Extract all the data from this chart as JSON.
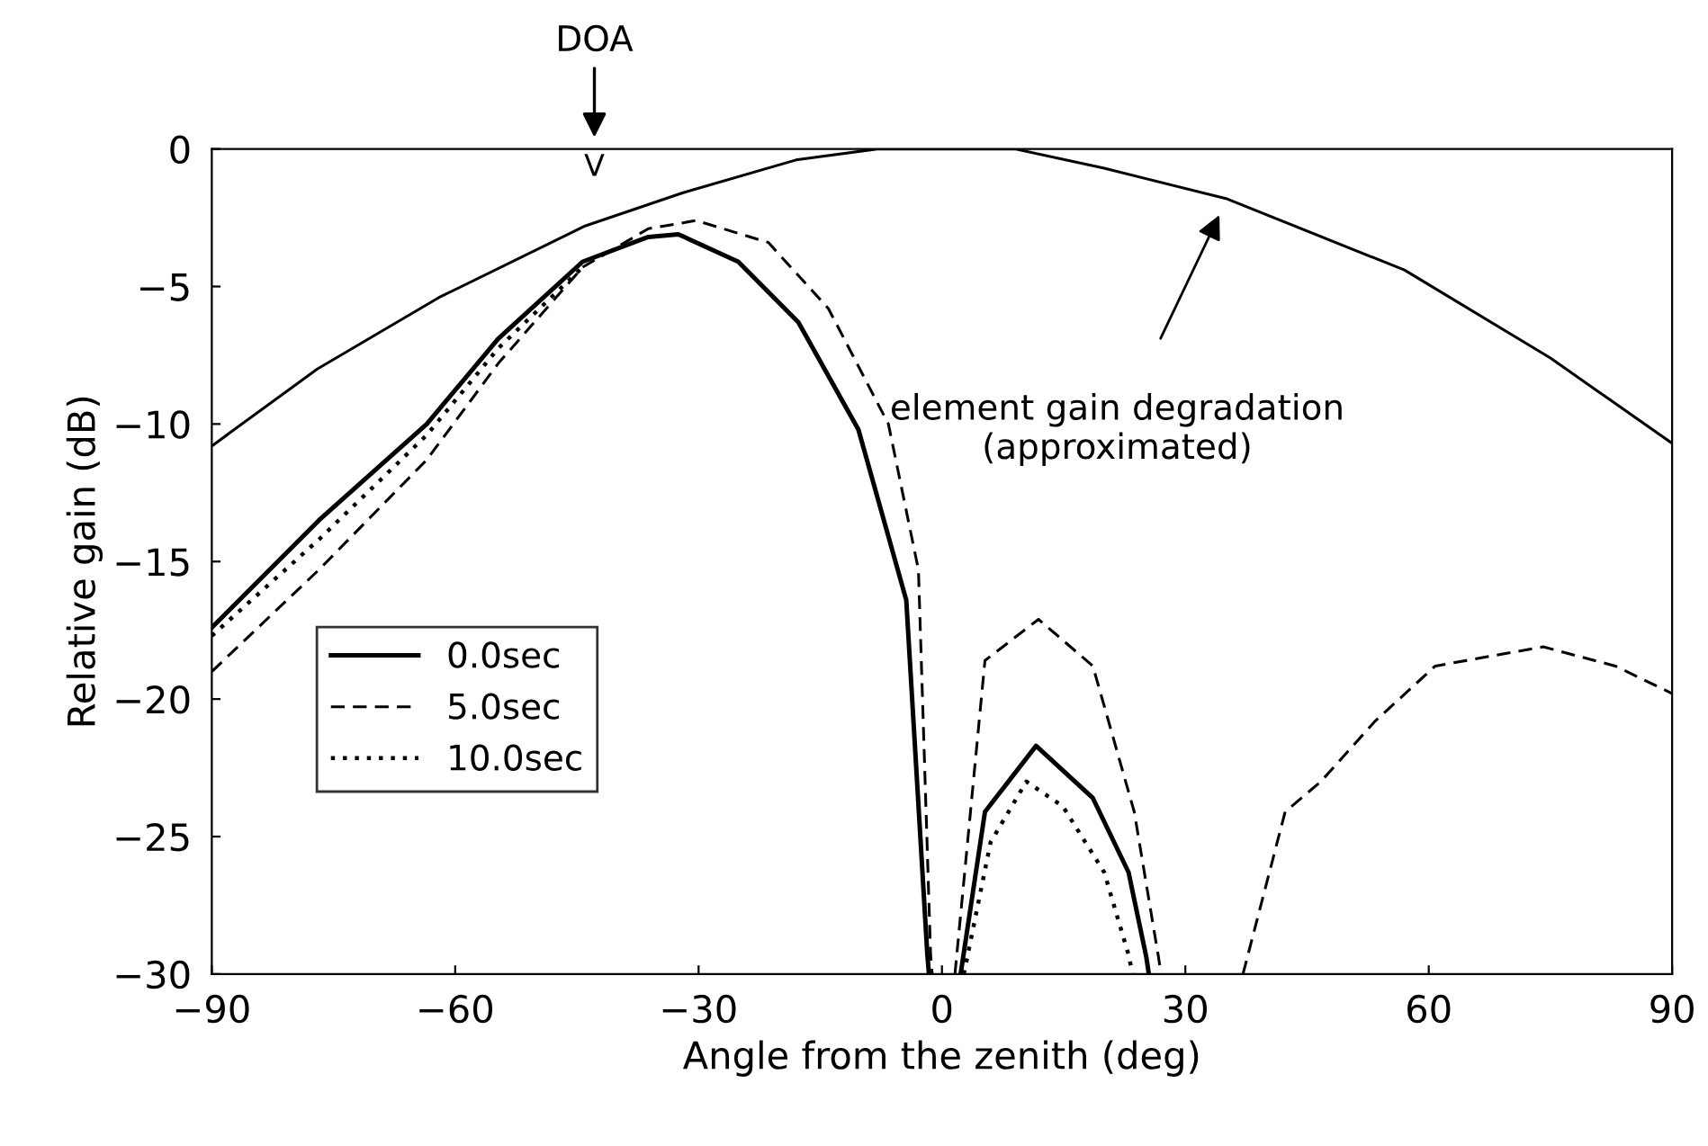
{
  "chart_data": {
    "type": "line",
    "xlabel": "Angle from the zenith (deg)",
    "ylabel": "Relative gain (dB)",
    "xlim": [
      -90,
      90
    ],
    "ylim": [
      -30,
      0
    ],
    "xticks": [
      -90,
      -60,
      -30,
      0,
      30,
      60,
      90
    ],
    "yticks": [
      0,
      -5,
      -10,
      -15,
      -20,
      -25,
      -30
    ],
    "grid": false,
    "legend": "bottom left",
    "marker": "none",
    "series": [
      {
        "name": "0.0sec",
        "color": "#000000",
        "line_style": "solid",
        "x": [
          -90,
          -76.8,
          -63.5,
          -54.7,
          -44.3,
          -36.2,
          -32.5,
          -25.1,
          -17.7,
          -10.3,
          -4.4,
          -1.8,
          -1.6,
          0,
          2.3,
          5.3,
          11.6,
          18.6,
          23,
          25.2,
          25.5
        ],
        "values": [
          -17.4,
          -13.5,
          -10,
          -6.9,
          -4.1,
          -3.2,
          -3.1,
          -4.1,
          -6.3,
          -10.2,
          -16.4,
          -29.3,
          -30,
          null,
          -30,
          -24.1,
          -21.7,
          -23.6,
          -26.3,
          -29.4,
          -30
        ]
      },
      {
        "name": "5.0sec",
        "color": "#000000",
        "line_style": "dashed",
        "x": [
          -90,
          -76.8,
          -63.5,
          -54.7,
          -44.3,
          -36.2,
          -30.3,
          -21.4,
          -14,
          -6.6,
          -2.9,
          -1.4,
          -1.2,
          0,
          1.6,
          5.3,
          11.9,
          18.6,
          23.7,
          26.7,
          27,
          32,
          37.1,
          42.3,
          46.7,
          53.4,
          60.8,
          74.1,
          83,
          90
        ],
        "values": [
          -19,
          -15.3,
          -11.3,
          -7.8,
          -4.3,
          -2.9,
          -2.6,
          -3.4,
          -5.8,
          -10,
          -15.3,
          -29.3,
          -30,
          null,
          -30,
          -18.6,
          -17.1,
          -18.8,
          -24.1,
          -29.4,
          -30,
          null,
          -30,
          -24.1,
          -23,
          -20.8,
          -18.8,
          -18.1,
          -18.8,
          -19.8
        ]
      },
      {
        "name": "10.0sec",
        "color": "#000000",
        "line_style": "dotted",
        "x": [
          -90,
          -76.8,
          -63.5,
          -54.7,
          -44.3,
          0,
          2.7,
          6,
          10.4,
          14.9,
          20,
          23,
          23.5
        ],
        "values": [
          -17.7,
          -14.2,
          -10.4,
          -7.25,
          -4.3,
          null,
          -30,
          -25.2,
          -23,
          -23.9,
          -26.3,
          -29.3,
          -30
        ]
      },
      {
        "color": "#000000",
        "line_style": "solid",
        "x": [
          -90,
          -77,
          -62,
          -44,
          -32,
          -18,
          -8,
          0,
          9,
          20,
          35,
          57,
          75,
          90
        ],
        "values": [
          -10.8,
          -8,
          -5.4,
          -2.8,
          -1.6,
          -0.4,
          0,
          0,
          0,
          -0.7,
          -1.8,
          -4.4,
          -7.6,
          -10.7
        ]
      }
    ],
    "annotations": [
      "DOA",
      "V",
      "element gain degradation\n(approximated)"
    ]
  }
}
